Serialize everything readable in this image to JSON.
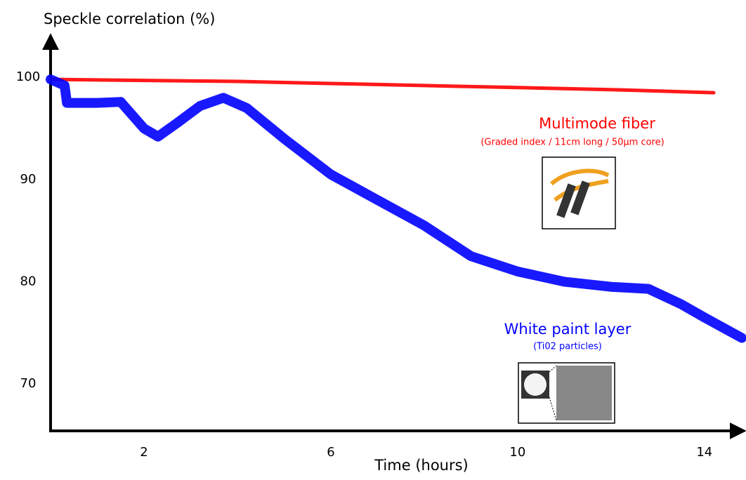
{
  "chart_data": {
    "type": "line",
    "ylabel": "Speckle correlation (%)",
    "xlabel": "Time (hours)",
    "xlim": [
      0,
      14.8
    ],
    "ylim": [
      65.4,
      104
    ],
    "xticks": [
      2,
      6,
      10,
      14
    ],
    "yticks": [
      70,
      80,
      90,
      100
    ],
    "grid": false,
    "series": [
      {
        "name": "Multimode fiber",
        "color": "#ff0000",
        "x": [
          0,
          2,
          4,
          6,
          8,
          10,
          12,
          14.2
        ],
        "values": [
          99.8,
          99.7,
          99.6,
          99.4,
          99.2,
          99.0,
          98.8,
          98.5
        ]
      },
      {
        "name": "White paint layer",
        "color": "#0000ff",
        "x": [
          0,
          0.3,
          0.35,
          1,
          1.5,
          2,
          2.3,
          2.7,
          3.2,
          3.7,
          4.2,
          5,
          6,
          7,
          8,
          9,
          10,
          11,
          12,
          12.8,
          13.5,
          14,
          14.8
        ],
        "values": [
          99.8,
          99.2,
          97.5,
          97.5,
          97.6,
          95,
          94.2,
          95.5,
          97.2,
          98,
          97,
          94,
          90.5,
          88,
          85.5,
          82.5,
          81,
          80,
          79.5,
          79.3,
          77.8,
          76.5,
          74.5
        ]
      }
    ],
    "annotations": [
      "(Graded index / 11cm long / 50µm core)",
      "(Ti02 particles)"
    ]
  }
}
